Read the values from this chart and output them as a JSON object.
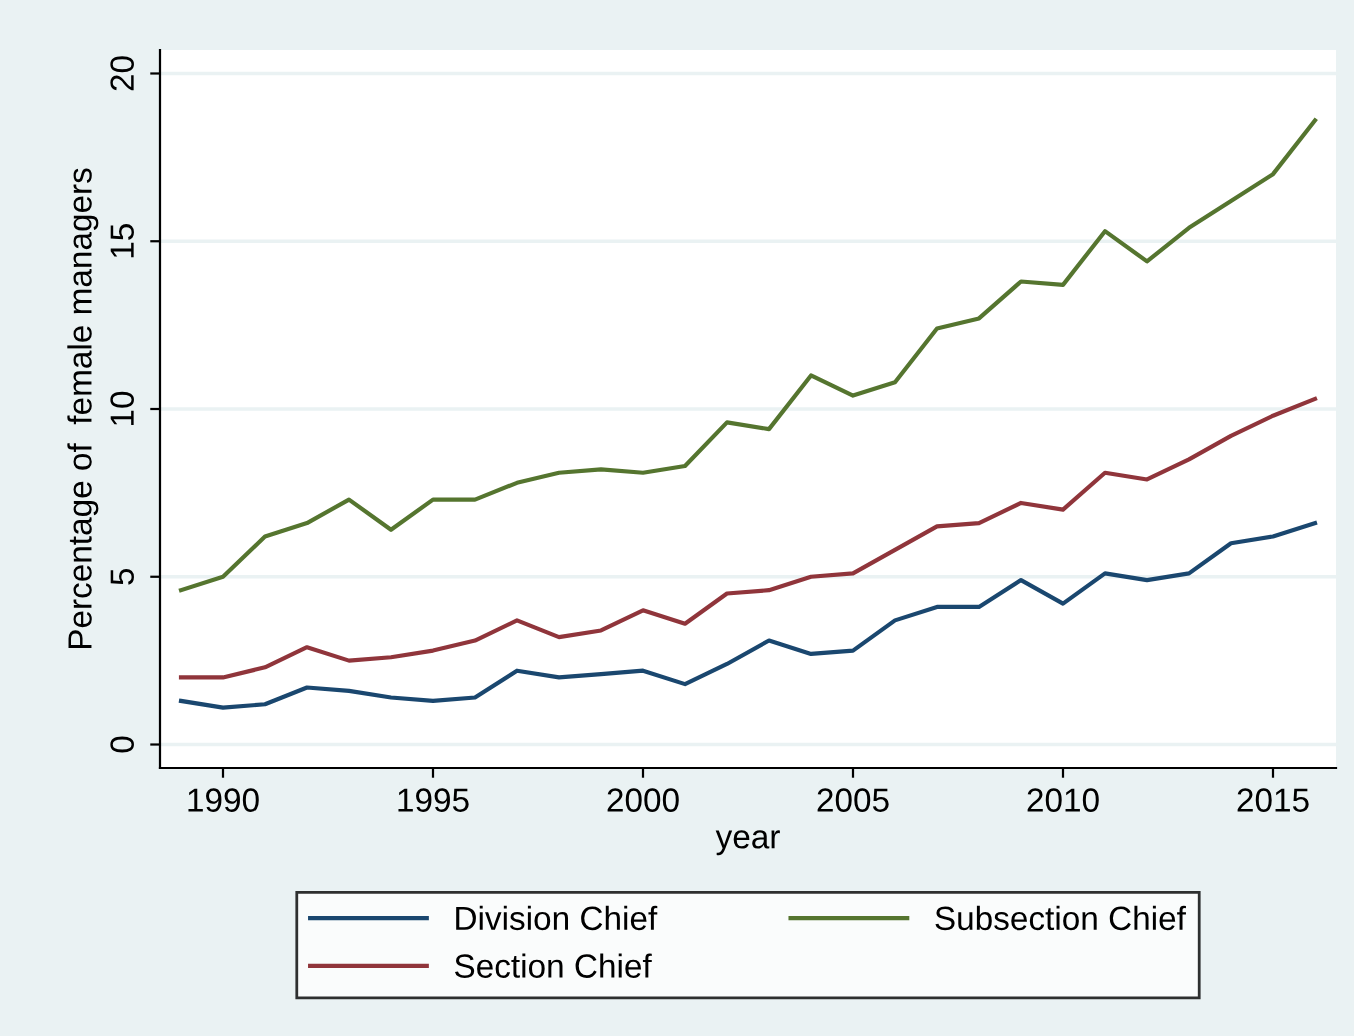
{
  "chart_data": {
    "type": "line",
    "xlabel": "year",
    "ylabel": "Percentage of  female managers",
    "x": [
      1989,
      1990,
      1991,
      1992,
      1993,
      1994,
      1995,
      1996,
      1997,
      1998,
      1999,
      2000,
      2001,
      2002,
      2003,
      2004,
      2005,
      2006,
      2007,
      2008,
      2009,
      2010,
      2011,
      2012,
      2013,
      2014,
      2015,
      2016
    ],
    "series": [
      {
        "name": "Division Chief",
        "color": "#1a476f",
        "values": [
          1.3,
          1.1,
          1.2,
          1.7,
          1.6,
          1.4,
          1.3,
          1.4,
          2.2,
          2.0,
          2.1,
          2.2,
          1.8,
          2.4,
          3.1,
          2.7,
          2.8,
          3.7,
          4.1,
          4.1,
          4.9,
          4.2,
          5.1,
          4.9,
          5.1,
          6.0,
          6.2,
          6.6
        ]
      },
      {
        "name": "Section Chief",
        "color": "#90353b",
        "values": [
          2.0,
          2.0,
          2.3,
          2.9,
          2.5,
          2.6,
          2.8,
          3.1,
          3.7,
          3.2,
          3.4,
          4.0,
          3.6,
          4.5,
          4.6,
          5.0,
          5.1,
          5.8,
          6.5,
          6.6,
          7.2,
          7.0,
          8.1,
          7.9,
          8.5,
          9.2,
          9.8,
          10.3
        ]
      },
      {
        "name": "Subsection Chief",
        "color": "#55752f",
        "values": [
          4.6,
          5.0,
          6.2,
          6.6,
          7.3,
          6.4,
          7.3,
          7.3,
          7.8,
          8.1,
          8.2,
          8.1,
          8.3,
          9.6,
          9.4,
          11.0,
          10.4,
          10.8,
          12.4,
          12.7,
          13.8,
          13.7,
          15.3,
          14.4,
          15.4,
          16.2,
          17.0,
          18.6
        ]
      }
    ],
    "xlim": [
      1988.5,
      2016.5
    ],
    "xticks": [
      1990,
      1995,
      2000,
      2005,
      2010,
      2015
    ],
    "ylim": [
      -0.7,
      20.7
    ],
    "yticks": [
      0,
      5,
      10,
      15,
      20
    ],
    "grid": "y",
    "legend": "bottom",
    "marker": "none",
    "line_style": "solid"
  }
}
